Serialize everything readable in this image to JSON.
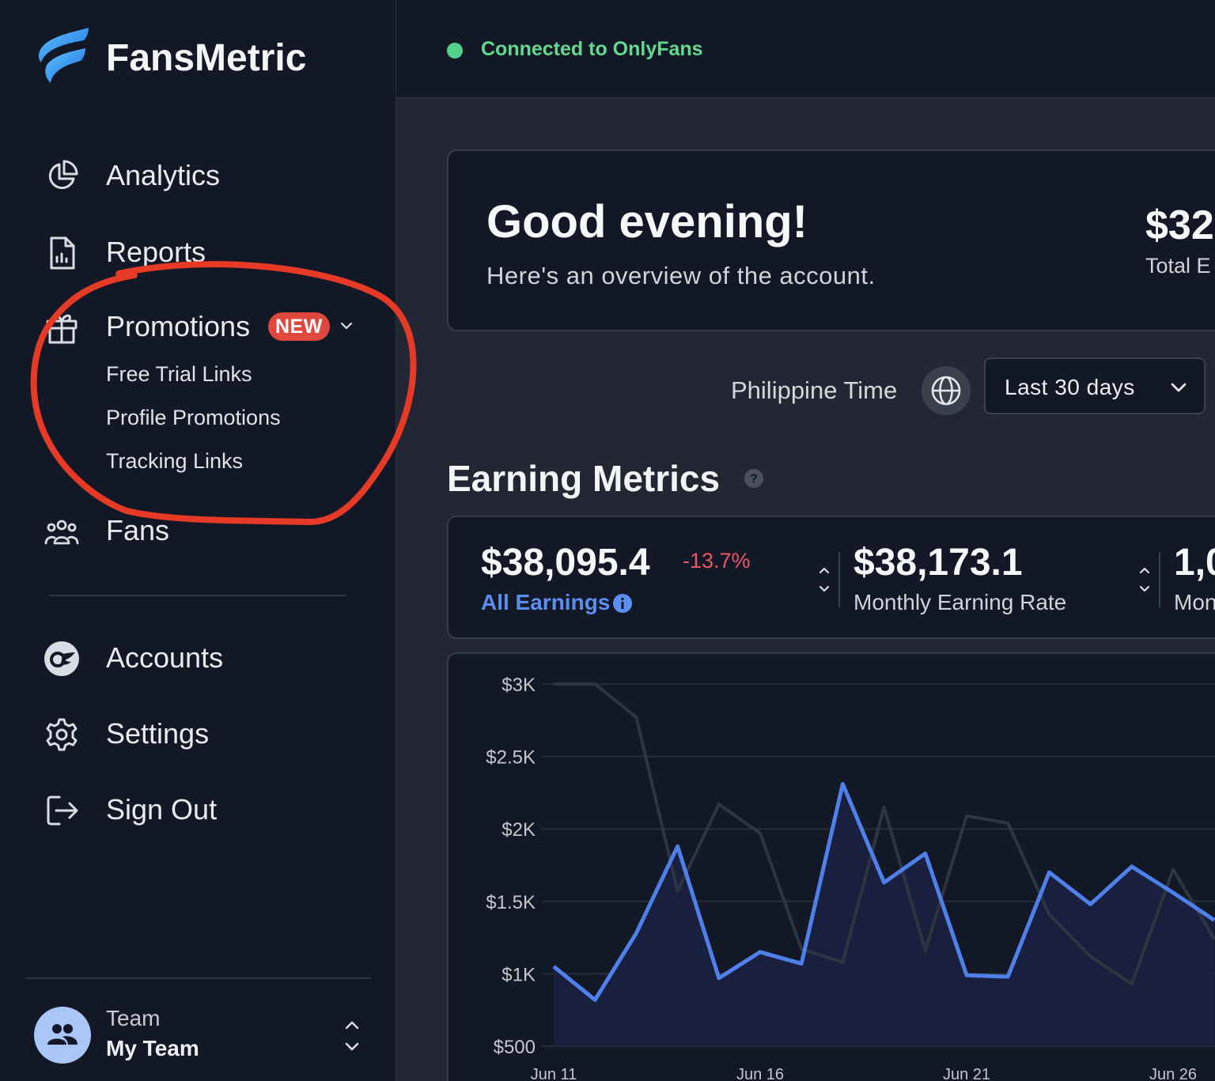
{
  "brand": {
    "name": "FansMetric"
  },
  "sidebar": {
    "items": [
      {
        "label": "Analytics",
        "icon": "pie-chart-icon"
      },
      {
        "label": "Reports",
        "icon": "report-icon"
      },
      {
        "label": "Promotions",
        "icon": "gift-icon",
        "badge": "NEW",
        "children": [
          "Free Trial Links",
          "Profile Promotions",
          "Tracking Links"
        ]
      },
      {
        "label": "Fans",
        "icon": "users-icon"
      },
      {
        "label": "Accounts",
        "icon": "onlyfans-icon"
      },
      {
        "label": "Settings",
        "icon": "gear-icon"
      },
      {
        "label": "Sign Out",
        "icon": "sign-out-icon"
      }
    ],
    "team": {
      "kicker": "Team",
      "name": "My Team"
    }
  },
  "topbar": {
    "status": "Connected to OnlyFans",
    "status_color": "#53d18a"
  },
  "greeting": {
    "title": "Good evening!",
    "subtitle": "Here's an overview of the account.",
    "total_value": "$32",
    "total_label": "Total E"
  },
  "filters": {
    "timezone": "Philippine Time",
    "period": "Last 30 days"
  },
  "earning_metrics": {
    "title": "Earning Metrics",
    "cards": [
      {
        "value": "$38,095.4",
        "change": "-13.7%",
        "label": "All Earnings"
      },
      {
        "value": "$38,173.1",
        "label": "Monthly Earning Rate"
      },
      {
        "value": "1,0",
        "label": "Mon"
      }
    ]
  },
  "colors": {
    "accent": "#5b8ef0",
    "negative": "#ee5566",
    "badge": "#e0483e"
  },
  "chart_data": {
    "type": "line",
    "y_tick_labels": [
      "$3K",
      "$2.5K",
      "$2K",
      "$1.5K",
      "$1K",
      "$500"
    ],
    "x_tick_labels": [
      "Jun 11",
      "Jun 16",
      "Jun 21",
      "Jun 26"
    ],
    "ylim": [
      500,
      3000
    ],
    "x": [
      "Jun 11",
      "Jun 12",
      "Jun 13",
      "Jun 14",
      "Jun 15",
      "Jun 16",
      "Jun 17",
      "Jun 18",
      "Jun 19",
      "Jun 20",
      "Jun 21",
      "Jun 22",
      "Jun 23",
      "Jun 24",
      "Jun 25",
      "Jun 26",
      "Jun 27"
    ],
    "series": [
      {
        "color": "#4f80ea",
        "values": [
          1050,
          820,
          1280,
          1880,
          970,
          1150,
          1070,
          2310,
          1630,
          1830,
          990,
          980,
          1700,
          1480,
          1740,
          1560,
          1370
        ]
      },
      {
        "color": "#2f3540",
        "values": [
          3000,
          3000,
          2770,
          1570,
          2170,
          1970,
          1170,
          1080,
          2150,
          1160,
          2090,
          2040,
          1410,
          1120,
          930,
          1720,
          1240
        ]
      }
    ]
  }
}
